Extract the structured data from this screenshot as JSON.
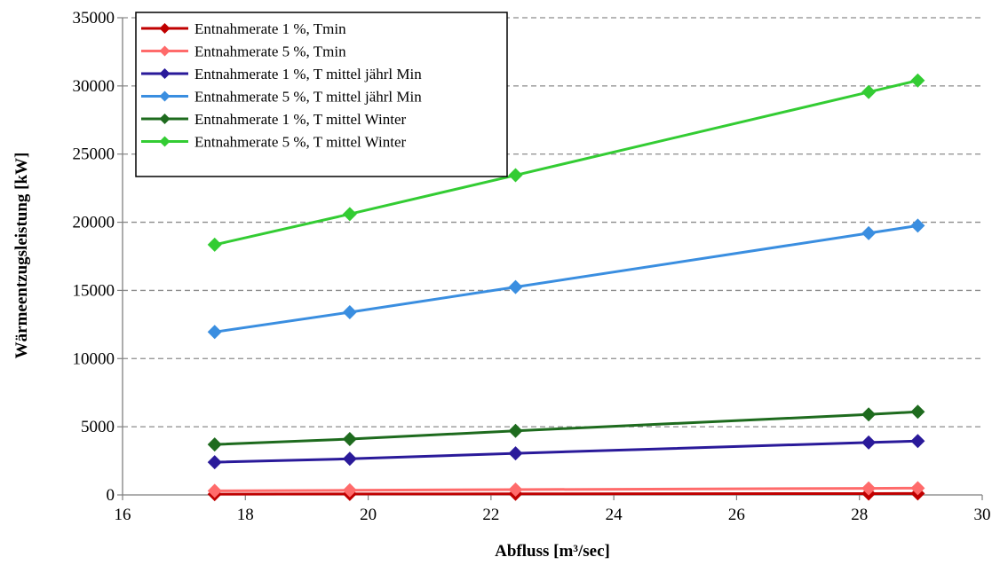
{
  "chart_data": {
    "type": "line",
    "xlabel": "Abfluss [m³/sec]",
    "ylabel": "Wärmeentzugsleistung [kW]",
    "xlim": [
      16,
      30
    ],
    "ylim": [
      0,
      35000
    ],
    "x_ticks": [
      "16",
      "18",
      "20",
      "22",
      "24",
      "26",
      "28",
      "30"
    ],
    "y_ticks": [
      "0",
      "5000",
      "10000",
      "15000",
      "20000",
      "25000",
      "30000",
      "35000"
    ],
    "grid": "horizontal dashed",
    "legend_position": "top-left",
    "x": [
      17.5,
      19.7,
      22.4,
      28.15,
      28.95
    ],
    "series": [
      {
        "name": "Entnahmerate 1 %, Tmin",
        "color": "#C00000",
        "values": [
          60,
          70,
          80,
          100,
          105
        ]
      },
      {
        "name": "Entnahmerate 5 %, Tmin",
        "color": "#FF6B6B",
        "values": [
          300,
          340,
          390,
          480,
          500
        ]
      },
      {
        "name": "Entnahmerate 1 %, T mittel jährl Min",
        "color": "#2A1A9A",
        "values": [
          2400,
          2650,
          3050,
          3850,
          3950
        ]
      },
      {
        "name": "Entnahmerate 5 %, T mittel jährl Min",
        "color": "#3A8EE0",
        "values": [
          11950,
          13400,
          15250,
          19200,
          19750
        ]
      },
      {
        "name": "Entnahmerate 1 %, T mittel Winter",
        "color": "#1E6B1E",
        "values": [
          3700,
          4100,
          4700,
          5900,
          6100
        ]
      },
      {
        "name": "Entnahmerate 5 %, T mittel Winter",
        "color": "#33CC33",
        "values": [
          18350,
          20600,
          23450,
          29550,
          30400
        ]
      }
    ]
  }
}
